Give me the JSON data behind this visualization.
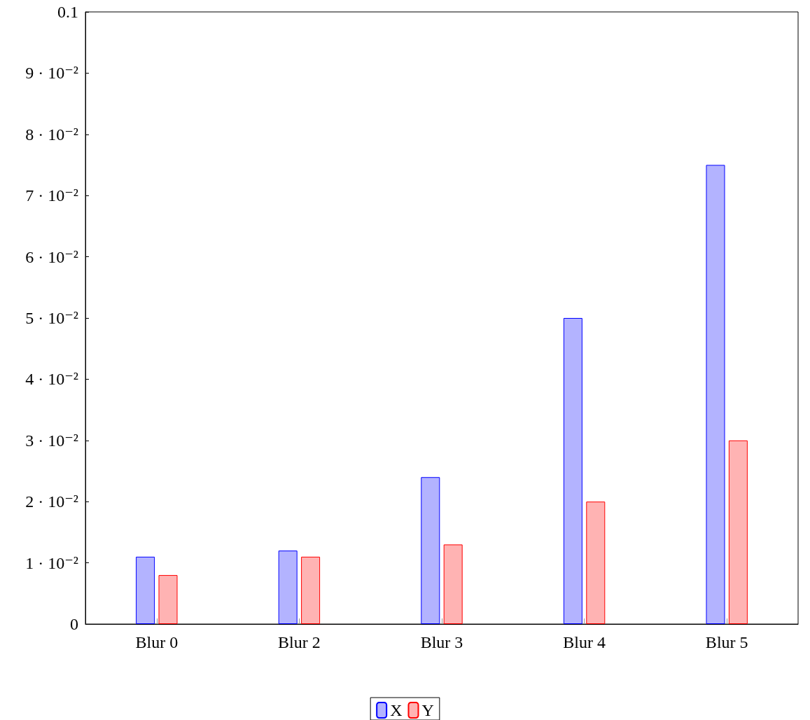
{
  "chart_data": {
    "type": "bar",
    "categories": [
      "Blur 0",
      "Blur 2",
      "Blur 3",
      "Blur 4",
      "Blur 5"
    ],
    "series": [
      {
        "name": "X",
        "color": "#b3b3ff",
        "values": [
          0.011,
          0.012,
          0.024,
          0.05,
          0.075
        ]
      },
      {
        "name": "Y",
        "color": "#ffb3b3",
        "values": [
          0.008,
          0.011,
          0.013,
          0.02,
          0.03
        ]
      }
    ],
    "ylim": [
      0,
      0.1
    ],
    "yticks": [
      0,
      {
        "value": 0.01,
        "label": "1 · 10⁻²"
      },
      {
        "value": 0.02,
        "label": "2 · 10⁻²"
      },
      {
        "value": 0.03,
        "label": "3 · 10⁻²"
      },
      {
        "value": 0.04,
        "label": "4 · 10⁻²"
      },
      {
        "value": 0.05,
        "label": "5 · 10⁻²"
      },
      {
        "value": 0.06,
        "label": "6 · 10⁻²"
      },
      {
        "value": 0.07,
        "label": "7 · 10⁻²"
      },
      {
        "value": 0.08,
        "label": "8 · 10⁻²"
      },
      {
        "value": 0.09,
        "label": "9 · 10⁻²"
      },
      0.1
    ],
    "grid": false,
    "legend": "bottom"
  }
}
